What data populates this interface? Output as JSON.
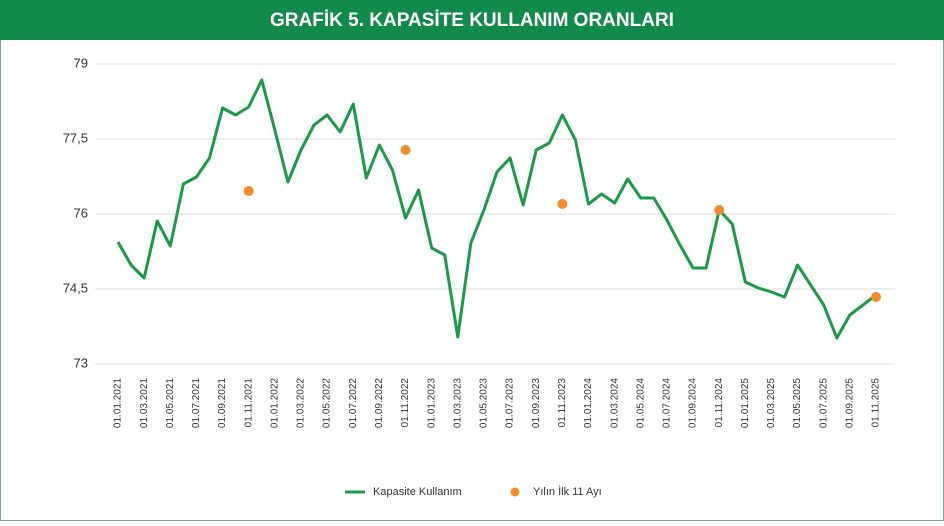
{
  "chart_data": {
    "type": "line",
    "title": "GRAFİK 5. KAPASİTE KULLANIM ORANLARI",
    "categories": [
      "01.01.2021",
      null,
      "01.03.2021",
      null,
      "01.05.2021",
      null,
      "01.07.2021",
      null,
      "01.09.2021",
      null,
      "01.11.2021",
      null,
      "01.01.2022",
      null,
      "01.03.2022",
      null,
      "01.05.2022",
      null,
      "01.07.2022",
      null,
      "01.09.2022",
      null,
      "01.11.2022",
      null,
      "01.01.2023",
      null,
      "01.03.2023",
      null,
      "01.05.2023",
      null,
      "01.07.2023",
      null,
      "01.09.2023",
      null,
      "01.11.2023",
      null,
      "01.01.2024",
      null,
      "01.03.2024",
      null,
      "01.05.2024",
      null,
      "01.07.2024",
      null,
      "01.09.2024",
      null,
      "01.11.2024",
      null,
      "01.01.2025",
      null,
      "01.03.2025",
      null,
      "01.05.2025",
      null,
      "01.07.2025",
      null,
      "01.09.2025",
      null,
      "01.11.2025"
    ],
    "series": [
      {
        "name": "Kapasite Kullanım",
        "color": "#1a9b48",
        "mode": "lines",
        "values": [
          75.44,
          74.98,
          74.72,
          75.86,
          75.36,
          76.6,
          76.74,
          77.12,
          78.12,
          77.98,
          78.14,
          78.68,
          77.68,
          76.64,
          77.28,
          77.78,
          77.98,
          77.64,
          78.2,
          76.72,
          77.38,
          76.88,
          75.92,
          76.48,
          75.32,
          75.18,
          73.54,
          75.42,
          76.08,
          76.84,
          77.12,
          76.18,
          77.28,
          77.42,
          77.98,
          77.48,
          76.2,
          76.4,
          76.22,
          76.7,
          76.32,
          76.32,
          75.88,
          75.38,
          74.92,
          74.92,
          76.08,
          75.8,
          74.64,
          74.52,
          74.44,
          74.34,
          74.98,
          74.58,
          74.18,
          73.52,
          73.98,
          74.18,
          74.38
        ]
      },
      {
        "name": "Yılın İlk 11 Ayı",
        "color": "#f28c28",
        "mode": "markers",
        "values": [
          null,
          null,
          null,
          null,
          null,
          null,
          null,
          null,
          null,
          null,
          76.46,
          null,
          null,
          null,
          null,
          null,
          null,
          null,
          null,
          null,
          null,
          null,
          77.28,
          null,
          null,
          null,
          null,
          null,
          null,
          null,
          null,
          null,
          null,
          null,
          76.2,
          null,
          null,
          null,
          null,
          null,
          null,
          null,
          null,
          null,
          null,
          null,
          76.08,
          null,
          null,
          null,
          null,
          null,
          null,
          null,
          null,
          null,
          null,
          null,
          74.34
        ]
      }
    ],
    "ylim": [
      73,
      79
    ],
    "yticks": [
      73,
      {
        "value": 74.5,
        "label": "74,5"
      },
      76,
      {
        "value": 77.5,
        "label": "77,5"
      },
      79
    ],
    "grid": true
  }
}
